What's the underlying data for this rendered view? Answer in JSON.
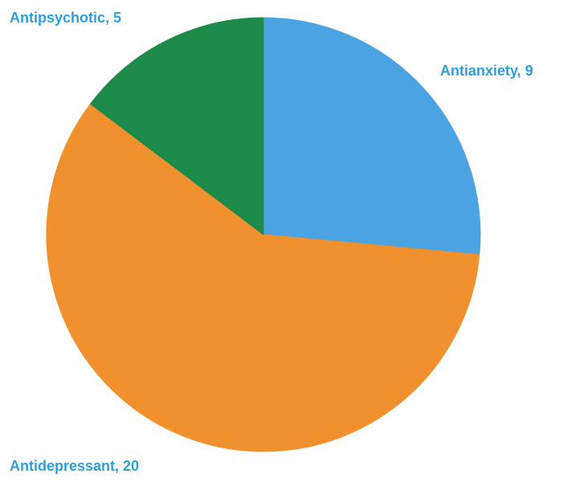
{
  "chart_data": {
    "type": "pie",
    "title": "",
    "start_angle_deg": 0,
    "direction": "clockwise",
    "legend": "none",
    "label_format": "{name}, {value}",
    "label_color": "#2e9fd8",
    "slices": [
      {
        "name": "Antianxiety",
        "value": 9,
        "color": "#4ba3e2"
      },
      {
        "name": "Antidepressant",
        "value": 20,
        "color": "#f0902e"
      },
      {
        "name": "Antipsychotic",
        "value": 5,
        "color": "#1c8a48"
      }
    ]
  }
}
